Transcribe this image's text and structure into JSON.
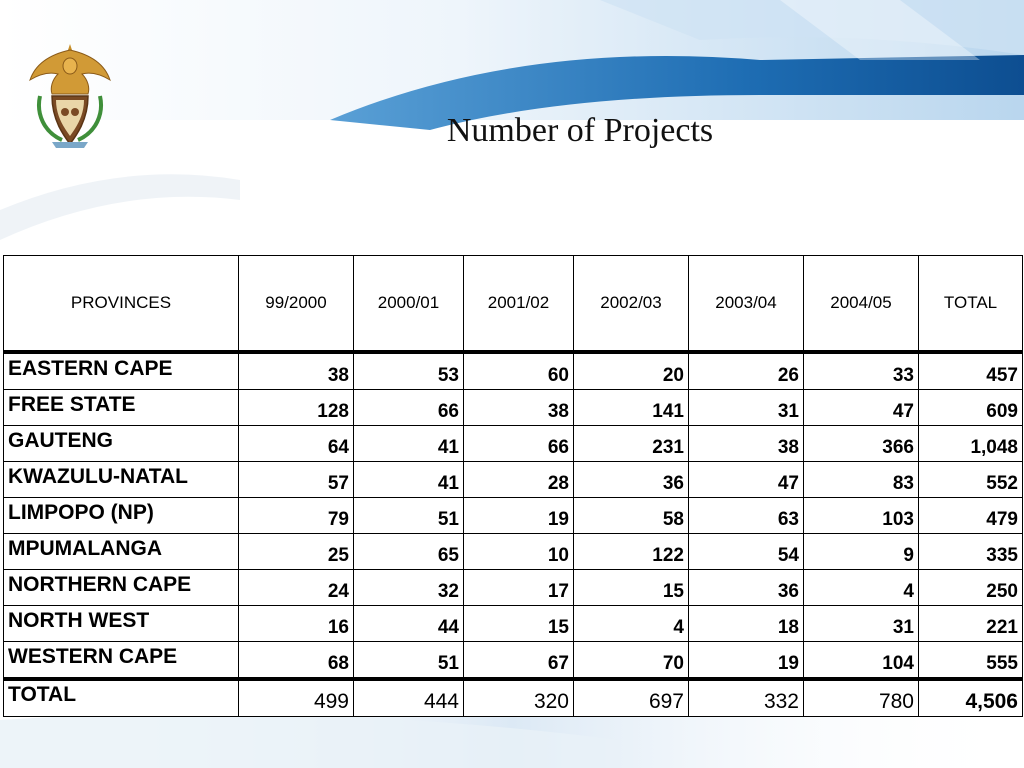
{
  "slide": {
    "title": "Number of Projects"
  },
  "table": {
    "headers": [
      "PROVINCES",
      "99/2000",
      "2000/01",
      "2001/02",
      "2002/03",
      "2003/04",
      "2004/05",
      "TOTAL"
    ],
    "rows": [
      {
        "province": "EASTERN CAPE",
        "values": [
          "38",
          "53",
          "60",
          "20",
          "26",
          "33",
          "457"
        ]
      },
      {
        "province": "FREE STATE",
        "values": [
          "128",
          "66",
          "38",
          "141",
          "31",
          "47",
          "609"
        ]
      },
      {
        "province": "GAUTENG",
        "values": [
          "64",
          "41",
          "66",
          "231",
          "38",
          "366",
          "1,048"
        ]
      },
      {
        "province": "KWAZULU-NATAL",
        "values": [
          "57",
          "41",
          "28",
          "36",
          "47",
          "83",
          "552"
        ]
      },
      {
        "province": "LIMPOPO (NP)",
        "values": [
          "79",
          "51",
          "19",
          "58",
          "63",
          "103",
          "479"
        ]
      },
      {
        "province": "MPUMALANGA",
        "values": [
          "25",
          "65",
          "10",
          "122",
          "54",
          "9",
          "335"
        ]
      },
      {
        "province": "NORTHERN CAPE",
        "values": [
          "24",
          "32",
          "17",
          "15",
          "36",
          "4",
          "250"
        ]
      },
      {
        "province": "NORTH WEST",
        "values": [
          "16",
          "44",
          "15",
          "4",
          "18",
          "31",
          "221"
        ]
      },
      {
        "province": "WESTERN CAPE",
        "values": [
          "68",
          "51",
          "67",
          "70",
          "19",
          "104",
          "555"
        ]
      }
    ],
    "total": {
      "label": "TOTAL",
      "values": [
        "499",
        "444",
        "320",
        "697",
        "332",
        "780",
        "4,506"
      ]
    }
  },
  "colors": {
    "banner_blue": "#1f6fb5",
    "banner_light": "#cfe3f3",
    "emblem_gold": "#c8902a"
  },
  "icons": {
    "emblem": "coat-of-arms-icon"
  }
}
